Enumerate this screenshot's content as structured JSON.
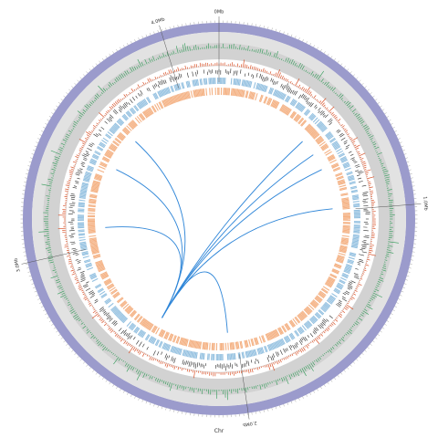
{
  "figure": {
    "caption": "Chr",
    "genome_length_mb": 4.2,
    "major_marks": [
      {
        "position_mb": 0,
        "label": "0Mb"
      },
      {
        "position_mb": 1,
        "label": "1.0Mb"
      },
      {
        "position_mb": 2,
        "label": "2.0Mb"
      },
      {
        "position_mb": 3,
        "label": "3.0Mb"
      },
      {
        "position_mb": 4,
        "label": "4.0Mb"
      }
    ],
    "colors": {
      "chromosome_band": "#9b9bcc",
      "outer_gray_band": "#e2e2e2",
      "inner_gray_band": "#d2d2d2",
      "gc_skew_track": "#2e9a55",
      "density_track": "#d9532a",
      "gene_marks": "#2a2a2a",
      "forward_cds": "#93c0e0",
      "reverse_cds": "#f4b183",
      "links": "#2f86d8"
    },
    "tracks": [
      "chromosome",
      "gc-content",
      "gc-skew",
      "snp-density",
      "gene-density",
      "forward-strand-cds",
      "reverse-strand-cds",
      "links"
    ],
    "links": [
      {
        "from_mb": 2.45,
        "to_mb": 0.55
      },
      {
        "from_mb": 2.45,
        "to_mb": 0.65
      },
      {
        "from_mb": 2.45,
        "to_mb": 0.75
      },
      {
        "from_mb": 2.45,
        "to_mb": 0.99
      },
      {
        "from_mb": 2.45,
        "to_mb": 2.05
      },
      {
        "from_mb": 2.45,
        "to_mb": 3.1
      },
      {
        "from_mb": 2.45,
        "to_mb": 3.45
      },
      {
        "from_mb": 2.45,
        "to_mb": 3.65
      }
    ]
  }
}
